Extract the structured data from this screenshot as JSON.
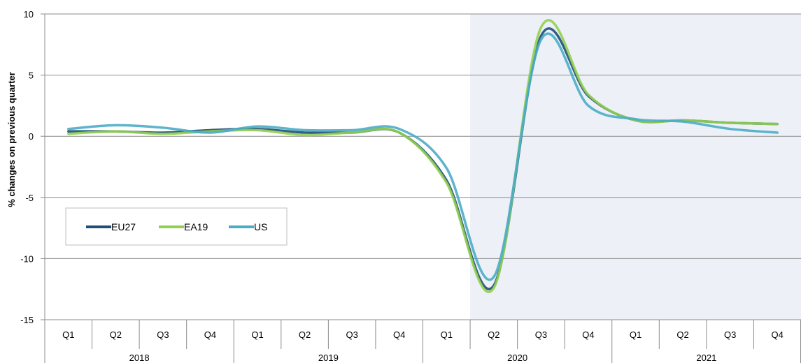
{
  "chart_data": {
    "type": "line",
    "ylabel": "% changes on previous quarter",
    "xlabel": "",
    "ylim": [
      -15,
      10
    ],
    "yticks": [
      10,
      5,
      0,
      -5,
      -10,
      -15
    ],
    "categories": [
      "Q1",
      "Q2",
      "Q3",
      "Q4",
      "Q1",
      "Q2",
      "Q3",
      "Q4",
      "Q1",
      "Q2",
      "Q3",
      "Q4",
      "Q1",
      "Q2",
      "Q3",
      "Q4"
    ],
    "years": [
      "2018",
      "2019",
      "2020",
      "2021"
    ],
    "shaded_from_index": 9,
    "grid": true,
    "legend_position": "lower-left",
    "series": [
      {
        "name": "EU27",
        "color": "#1f4e79",
        "values": [
          0.4,
          0.4,
          0.3,
          0.5,
          0.6,
          0.3,
          0.3,
          0.3,
          -3.6,
          -12.2,
          8.2,
          3.3,
          1.3,
          1.3,
          1.1,
          1.0
        ]
      },
      {
        "name": "EA19",
        "color": "#92d050",
        "values": [
          0.2,
          0.4,
          0.2,
          0.4,
          0.5,
          0.1,
          0.3,
          0.3,
          -3.8,
          -12.4,
          8.9,
          3.4,
          1.3,
          1.3,
          1.1,
          1.0
        ]
      },
      {
        "name": "US",
        "color": "#4bacc6",
        "values": [
          0.6,
          0.9,
          0.7,
          0.3,
          0.8,
          0.5,
          0.5,
          0.6,
          -2.6,
          -11.5,
          7.9,
          2.5,
          1.4,
          1.2,
          0.6,
          0.3
        ]
      }
    ]
  }
}
